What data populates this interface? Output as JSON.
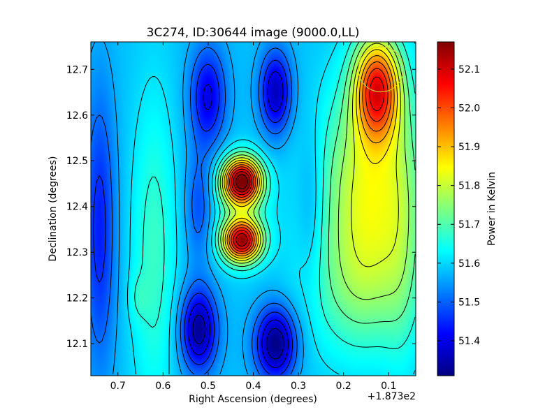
{
  "chart_data": {
    "type": "heatmap",
    "title": "3C274, ID:30644 image (9000.0,LL)",
    "xlabel": "Right Ascension (degrees)",
    "ylabel": "Declination (degrees)",
    "x_offset_label": "+1.873e2",
    "x_ticks": [
      0.7,
      0.6,
      0.5,
      0.4,
      0.3,
      0.2,
      0.1
    ],
    "x_tick_labels": [
      "0.7",
      "0.6",
      "0.5",
      "0.4",
      "0.3",
      "0.2",
      "0.1"
    ],
    "xlim": [
      0.76,
      0.04
    ],
    "y_ticks": [
      12.1,
      12.2,
      12.3,
      12.4,
      12.5,
      12.6,
      12.7
    ],
    "y_tick_labels": [
      "12.1",
      "12.2",
      "12.3",
      "12.4",
      "12.5",
      "12.6",
      "12.7"
    ],
    "ylim": [
      12.03,
      12.76
    ],
    "colorbar": {
      "label": "Power in Kelvin",
      "range": [
        51.31,
        52.17
      ],
      "ticks": [
        51.4,
        51.5,
        51.6,
        51.7,
        51.8,
        51.9,
        52.0,
        52.1
      ],
      "tick_labels": [
        "51.4",
        "51.5",
        "51.6",
        "51.7",
        "51.8",
        "51.9",
        "52.0",
        "52.1"
      ],
      "colormap": "jet"
    },
    "contours": true,
    "features": [
      {
        "x": 0.425,
        "y": 12.455,
        "value": 52.15
      },
      {
        "x": 0.425,
        "y": 12.325,
        "value": 52.12
      },
      {
        "x": 0.125,
        "y": 12.66,
        "value": 52.08
      },
      {
        "x": 0.35,
        "y": 12.1,
        "value": 51.33
      },
      {
        "x": 0.52,
        "y": 12.13,
        "value": 51.36
      },
      {
        "x": 0.35,
        "y": 12.65,
        "value": 51.38
      },
      {
        "x": 0.5,
        "y": 12.65,
        "value": 51.42
      },
      {
        "x": 0.74,
        "y": 12.35,
        "value": 51.45
      }
    ],
    "beam_circle": {
      "x": 0.117,
      "y": 12.7,
      "radius": 0.05,
      "color": "#cccc33"
    }
  }
}
